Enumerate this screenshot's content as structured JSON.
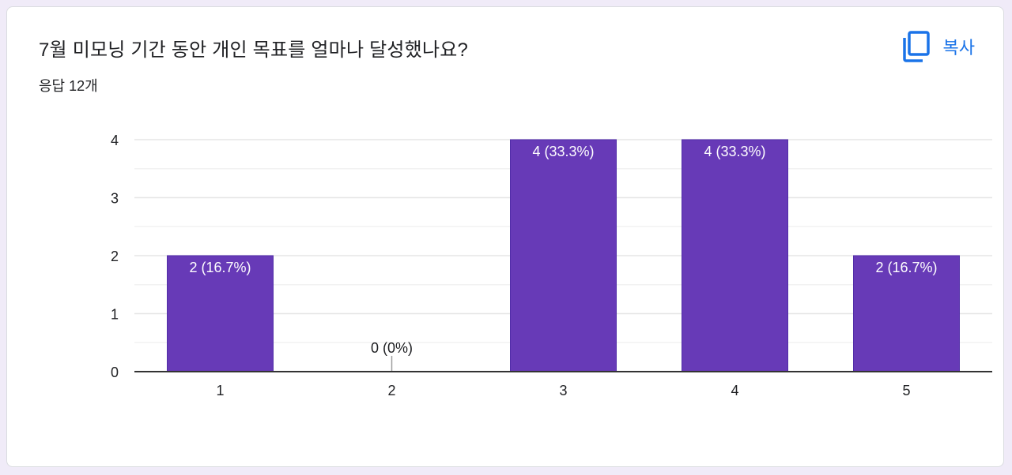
{
  "card": {
    "title": "7월 미모닝 기간 동안 개인 목표를 얼마나 달성했나요?",
    "subtitle": "응답 12개",
    "copy_label": "복사",
    "copy_icon": "copy-icon"
  },
  "colors": {
    "bar": "#673ab7",
    "accent": "#1a73e8",
    "background": "#f0ebf8"
  },
  "chart_data": {
    "type": "bar",
    "categories": [
      "1",
      "2",
      "3",
      "4",
      "5"
    ],
    "values": [
      2,
      0,
      4,
      4,
      2
    ],
    "data_labels": [
      "2 (16.7%)",
      "0 (0%)",
      "4 (33.3%)",
      "4 (33.3%)",
      "2 (16.7%)"
    ],
    "y_ticks": [
      "0",
      "1",
      "2",
      "3",
      "4"
    ],
    "ylim": [
      0,
      4
    ],
    "grid": true,
    "legend": "none"
  }
}
